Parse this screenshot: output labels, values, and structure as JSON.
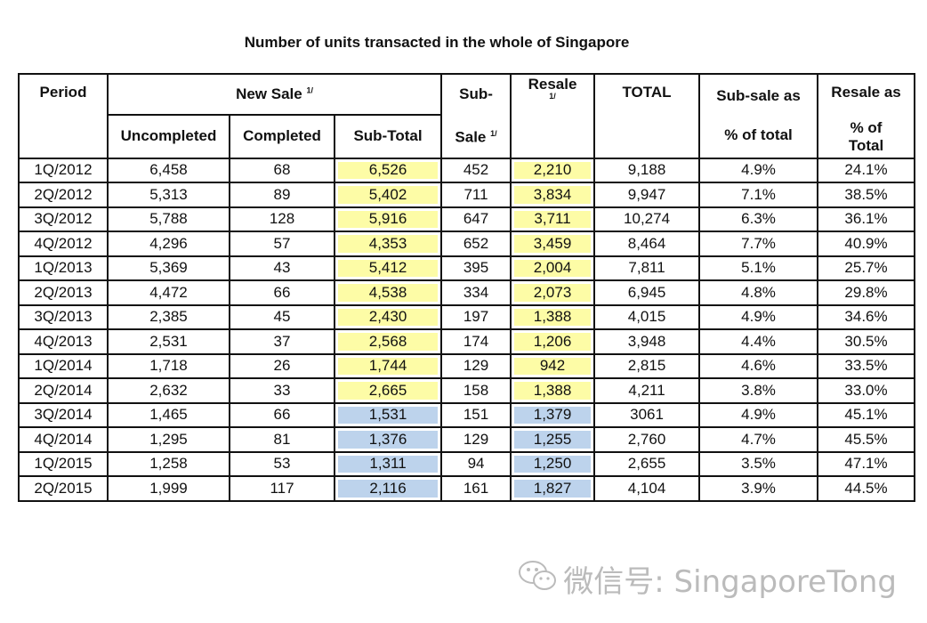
{
  "title": "Number of units transacted in the whole of Singapore",
  "header": {
    "period": "Period",
    "new_sale": "New Sale",
    "new_sale_note": "1/",
    "uncompleted": "Uncompleted",
    "completed": "Completed",
    "sub_total": "Sub-Total",
    "sub_sale_top": "Sub-",
    "sub_sale_bottom": "Sale",
    "sub_sale_note": "1/",
    "resale": "Resale",
    "resale_note": "1/",
    "total": "TOTAL",
    "sub_sale_pct_top": "Sub-sale as",
    "sub_sale_pct_bottom": "% of total",
    "resale_pct_top": "Resale as",
    "resale_pct_bottom": "% of Total"
  },
  "table": {
    "rows": [
      {
        "cells": [
          "1Q/2012",
          "6,458",
          "68",
          "6,526",
          "452",
          "2,210",
          "9,188",
          "4.9%",
          "24.1%"
        ],
        "highlight": "#fdfca6"
      },
      {
        "cells": [
          "2Q/2012",
          "5,313",
          "89",
          "5,402",
          "711",
          "3,834",
          "9,947",
          "7.1%",
          "38.5%"
        ],
        "highlight": "#fdfca6"
      },
      {
        "cells": [
          "3Q/2012",
          "5,788",
          "128",
          "5,916",
          "647",
          "3,711",
          "10,274",
          "6.3%",
          "36.1%"
        ],
        "highlight": "#fdfca6"
      },
      {
        "cells": [
          "4Q/2012",
          "4,296",
          "57",
          "4,353",
          "652",
          "3,459",
          "8,464",
          "7.7%",
          "40.9%"
        ],
        "highlight": "#fdfca6"
      },
      {
        "cells": [
          "1Q/2013",
          "5,369",
          "43",
          "5,412",
          "395",
          "2,004",
          "7,811",
          "5.1%",
          "25.7%"
        ],
        "highlight": "#fdfca6"
      },
      {
        "cells": [
          "2Q/2013",
          "4,472",
          "66",
          "4,538",
          "334",
          "2,073",
          "6,945",
          "4.8%",
          "29.8%"
        ],
        "highlight": "#fdfca6"
      },
      {
        "cells": [
          "3Q/2013",
          "2,385",
          "45",
          "2,430",
          "197",
          "1,388",
          "4,015",
          "4.9%",
          "34.6%"
        ],
        "highlight": "#fdfca6"
      },
      {
        "cells": [
          "4Q/2013",
          "2,531",
          "37",
          "2,568",
          "174",
          "1,206",
          "3,948",
          "4.4%",
          "30.5%"
        ],
        "highlight": "#fdfca6"
      },
      {
        "cells": [
          "1Q/2014",
          "1,718",
          "26",
          "1,744",
          "129",
          "942",
          "2,815",
          "4.6%",
          "33.5%"
        ],
        "highlight": "#fdfca6"
      },
      {
        "cells": [
          "2Q/2014",
          "2,632",
          "33",
          "2,665",
          "158",
          "1,388",
          "4,211",
          "3.8%",
          "33.0%"
        ],
        "highlight": "#fdfca6"
      },
      {
        "cells": [
          "3Q/2014",
          "1,465",
          "66",
          "1,531",
          "151",
          "1,379",
          "3061",
          "4.9%",
          "45.1%"
        ],
        "highlight": "#bdd3ec"
      },
      {
        "cells": [
          "4Q/2014",
          "1,295",
          "81",
          "1,376",
          "129",
          "1,255",
          "2,760",
          "4.7%",
          "45.5%"
        ],
        "highlight": "#bdd3ec"
      },
      {
        "cells": [
          "1Q/2015",
          "1,258",
          "53",
          "1,311",
          "94",
          "1,250",
          "2,655",
          "3.5%",
          "47.1%"
        ],
        "highlight": "#bdd3ec"
      },
      {
        "cells": [
          "2Q/2015",
          "1,999",
          "117",
          "2,116",
          "161",
          "1,827",
          "4,104",
          "3.9%",
          "44.5%"
        ],
        "highlight": "#bdd3ec"
      }
    ]
  },
  "watermark": "微信号: SingaporeTong"
}
